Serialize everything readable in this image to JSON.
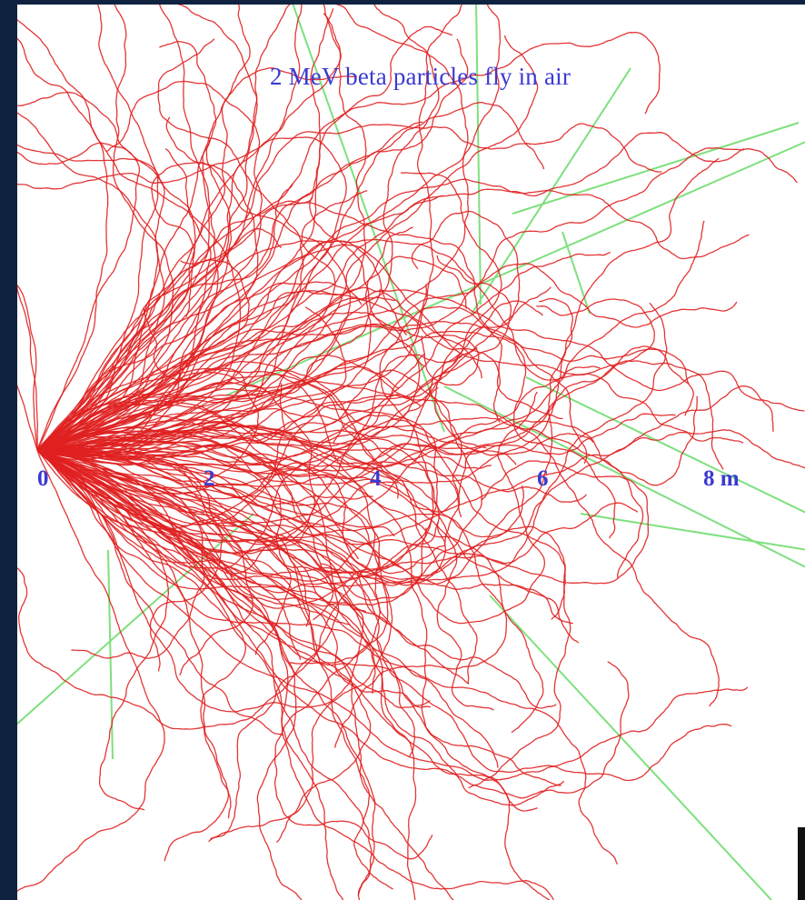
{
  "figure": {
    "title": "2 MeV beta particles fly in air",
    "axis_ticks": [
      "0",
      "2",
      "4",
      "6",
      "8 m"
    ],
    "colors": {
      "electron_tracks": "#e02020",
      "gamma_tracks": "#7ee07e",
      "text": "#3a3ad0",
      "frame": "#0f2340"
    }
  }
}
